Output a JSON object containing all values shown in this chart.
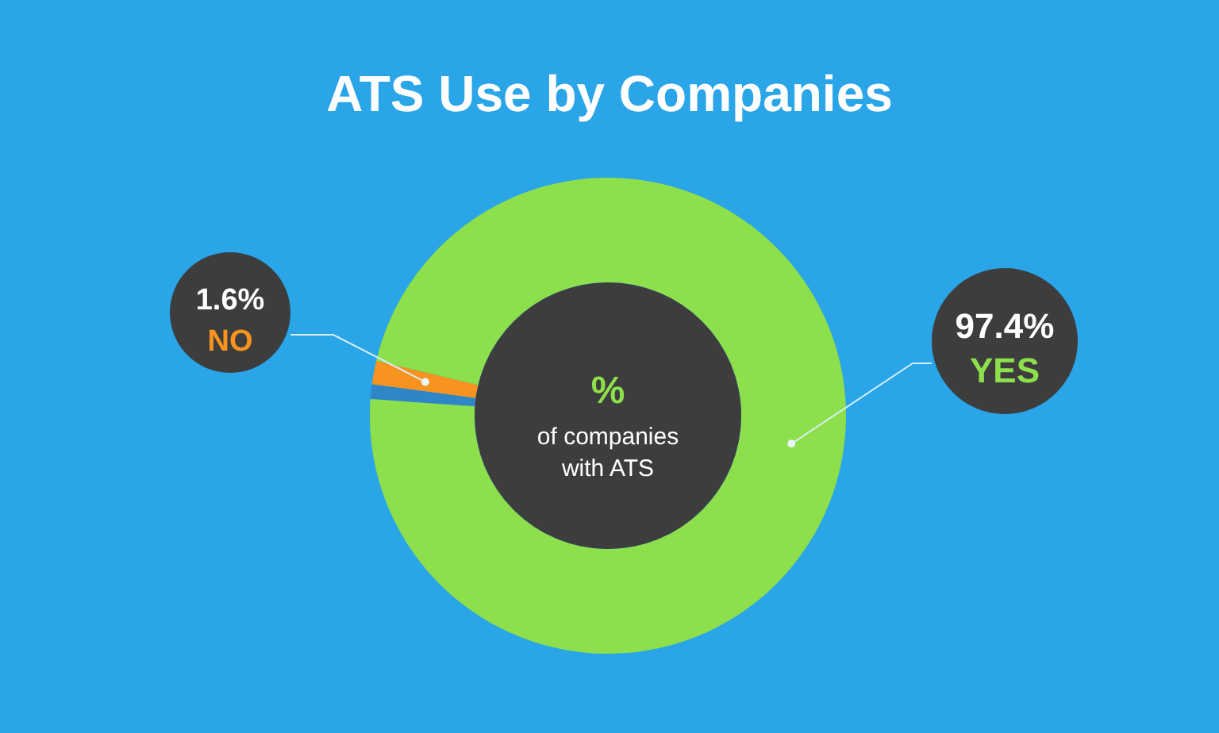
{
  "chart_data": {
    "type": "donut",
    "title": "ATS Use by Companies",
    "categories": [
      null,
      "NO",
      "YES"
    ],
    "values": [
      1.0,
      1.6,
      97.4
    ],
    "colors": [
      "#2f86c6",
      "#f7931e",
      "#8ddf4b"
    ],
    "value_labels": [
      null,
      "1.6%",
      "97.4%"
    ],
    "annotations": [
      "%",
      "of companies with ATS"
    ]
  }
}
